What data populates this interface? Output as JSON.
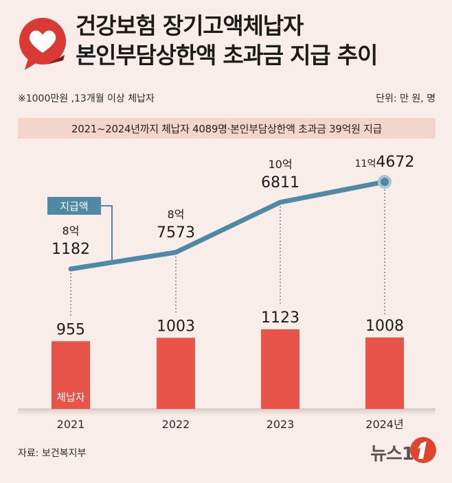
{
  "title": {
    "line1": "건강보험 장기고액체납자",
    "line2": "본인부담상한액 초과금 지급 추이"
  },
  "note": "※1000만원 ,13개월 이상 체납자",
  "unit": "단위: 만 원, 명",
  "summary": "2021~2024년까지 체납자 4089명·본인부담상한액 초과금 39억원 지급",
  "legend_line_label": "지급액",
  "legend_bar_label": "체납자",
  "source": "자료: 보건복지부",
  "brand": "뉴스1",
  "colors": {
    "bar": "#e8544a",
    "line": "#4e8aa5",
    "background": "#f8ede8",
    "band": "#f3d5cc",
    "accent": "#d93a33"
  },
  "chart_data": {
    "type": "bar+line",
    "categories": [
      "2021",
      "2022",
      "2023",
      "2024년"
    ],
    "series": [
      {
        "name": "체납자",
        "type": "bar",
        "values": [
          955,
          1003,
          1123,
          1008
        ],
        "labels": [
          "955",
          "1003",
          "1123",
          "1008"
        ]
      },
      {
        "name": "지급액",
        "type": "line",
        "values": [
          81182,
          87573,
          106811,
          114672
        ],
        "labels": [
          {
            "top": "8억",
            "bottom": "1182"
          },
          {
            "top": "8억",
            "bottom": "7573"
          },
          {
            "top": "10억",
            "bottom": "6811"
          },
          {
            "top": "11억",
            "bottom": "4672"
          }
        ]
      }
    ]
  }
}
